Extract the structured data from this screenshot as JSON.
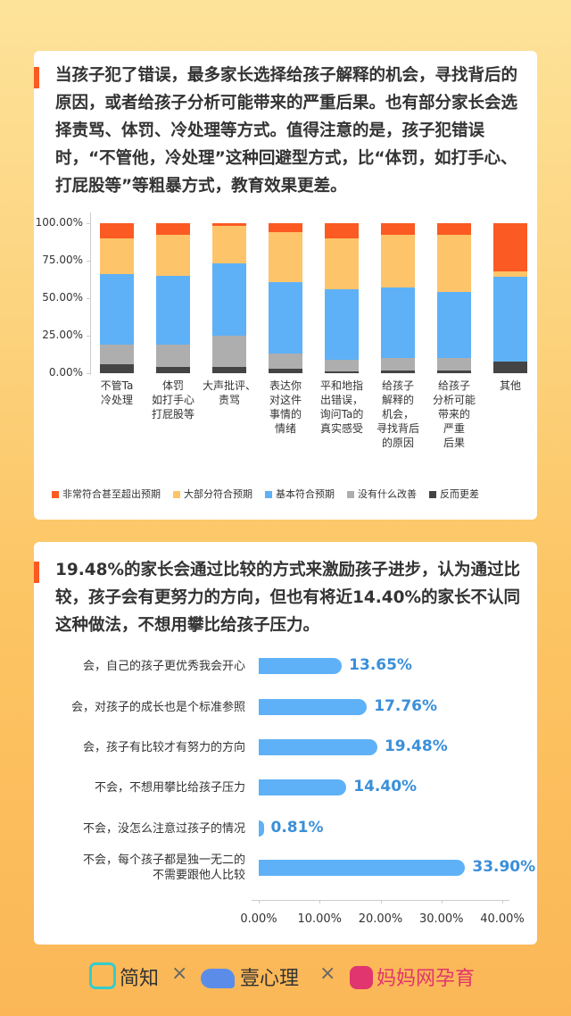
{
  "chart_data": [
    {
      "type": "stacked_bar",
      "description": "当孩子犯了错误，最多家长选择给孩子解释的机会，寻找背后的原因，或者给孩子分析可能带来的严重后果。也有部分家长会选择责骂、体罚、冷处理等方式。值得注意的是，孩子犯错误时，“不管他，冷处理”这种回避型方式，比“体罚，如打手心、打屁股等”等粗暴方式，教育效果更差。",
      "categories": [
        "不管Ta\n冷处理",
        "体罚\n如打手心\n打屁股等",
        "大声批评、\n责骂",
        "表达你\n对这件\n事情的\n情绪",
        "平和地指\n出错误，\n询问Ta的\n真实感受",
        "给孩子\n解释的\n机会，\n寻找背后\n的原因",
        "给孩子\n分析可能\n带来的\n严重\n后果",
        "其他"
      ],
      "series": [
        {
          "name": "非常符合甚至超出预期",
          "color": "#fb5a22",
          "values": [
            10,
            8,
            2,
            6,
            10,
            8,
            8,
            32
          ]
        },
        {
          "name": "大部分符合预期",
          "color": "#fdc46a",
          "values": [
            24,
            27,
            25,
            33,
            34,
            35,
            38,
            4
          ]
        },
        {
          "name": "基本符合预期",
          "color": "#5eb1f7",
          "values": [
            47,
            46,
            48,
            48,
            47,
            47,
            44,
            56
          ]
        },
        {
          "name": "没有什么改善",
          "color": "#aeaeae",
          "values": [
            13,
            15,
            21,
            10,
            8,
            8,
            8,
            0
          ]
        },
        {
          "name": "反而更差",
          "color": "#444444",
          "values": [
            6,
            4,
            4,
            3,
            1,
            2,
            2,
            8
          ]
        }
      ],
      "ylim": [
        0,
        100
      ],
      "yticks": [
        {
          "value": 0,
          "label": "0.00%"
        },
        {
          "value": 25,
          "label": "25.00%"
        },
        {
          "value": 50,
          "label": "50.00%"
        },
        {
          "value": 75,
          "label": "75.00%"
        },
        {
          "value": 100,
          "label": "100.00%"
        }
      ],
      "legend": "bottom"
    },
    {
      "type": "hbar",
      "description": "19.48%的家长会通过比较的方式来激励孩子进步，认为通过比较，孩子会有更努力的方向，但也有将近14.40%的家长不认同这种做法，不想用攀比给孩子压力。",
      "categories": [
        "会，自己的孩子更优秀我会开心",
        "会，对孩子的成长也是个标准参照",
        "会，孩子有比较才有努力的方向",
        "不会，不想用攀比给孩子压力",
        "不会，没怎么注意过孩子的情况",
        "不会，每个孩子都是独一无二的\n不需要跟他人比较"
      ],
      "values": [
        13.65,
        17.76,
        19.48,
        14.4,
        0.81,
        33.9
      ],
      "value_labels": [
        "13.65%",
        "17.76%",
        "19.48%",
        "14.40%",
        "0.81%",
        "33.90%"
      ],
      "color": "#5eb1f7",
      "xlim": [
        0,
        40
      ],
      "xticks": [
        {
          "value": 0,
          "label": "0.00%"
        },
        {
          "value": 10,
          "label": "10.00%"
        },
        {
          "value": 20,
          "label": "20.00%"
        },
        {
          "value": 30,
          "label": "30.00%"
        },
        {
          "value": 40,
          "label": "40.00%"
        }
      ]
    }
  ],
  "footer": [
    "简知",
    "壹心理",
    "妈妈网孕育"
  ]
}
